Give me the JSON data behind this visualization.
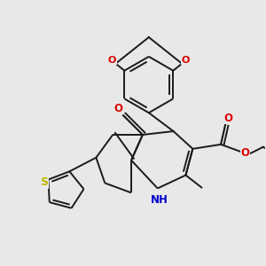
{
  "background_color": "#e8e8e8",
  "bond_color": "#1a1a1a",
  "atom_colors": {
    "O": "#dd0000",
    "N": "#0000cc",
    "S": "#bbbb00",
    "C": "#1a1a1a"
  },
  "figsize": [
    3.0,
    3.0
  ],
  "dpi": 100
}
